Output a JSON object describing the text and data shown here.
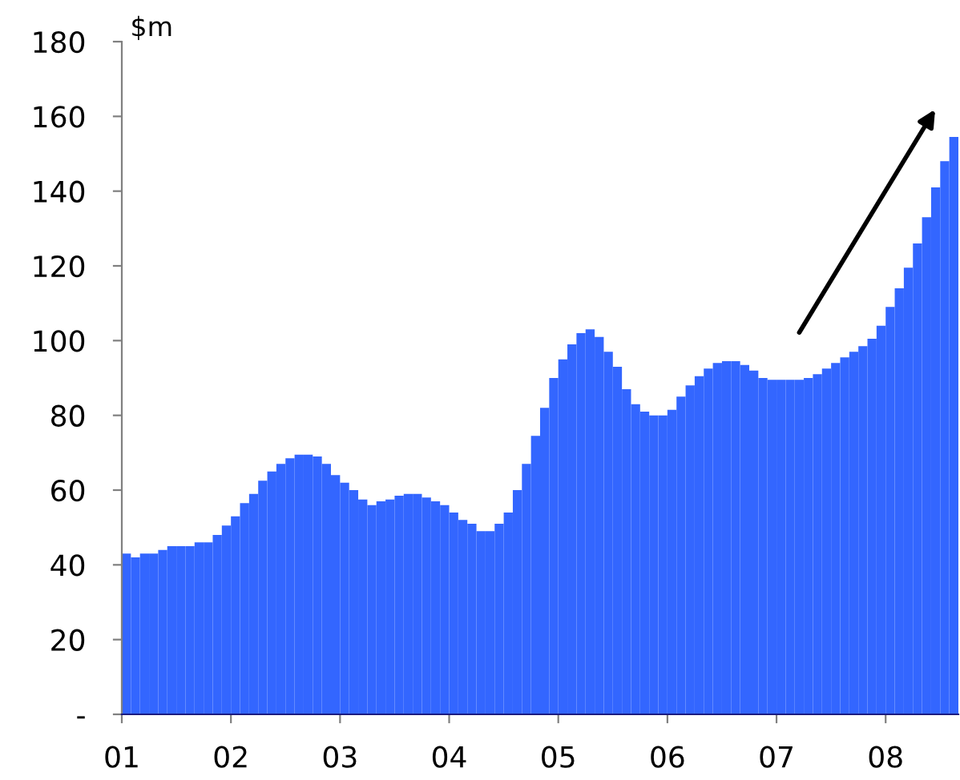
{
  "chart_data": {
    "type": "bar",
    "ylabel": "$m",
    "categories": [
      "01",
      null,
      null,
      null,
      null,
      null,
      null,
      null,
      null,
      null,
      null,
      null,
      "02",
      null,
      null,
      null,
      null,
      null,
      null,
      null,
      null,
      null,
      null,
      null,
      "03",
      null,
      null,
      null,
      null,
      null,
      null,
      null,
      null,
      null,
      null,
      null,
      "04",
      null,
      null,
      null,
      null,
      null,
      null,
      null,
      null,
      null,
      null,
      null,
      "05",
      null,
      null,
      null,
      null,
      null,
      null,
      null,
      null,
      null,
      null,
      null,
      "06",
      null,
      null,
      null,
      null,
      null,
      null,
      null,
      null,
      null,
      null,
      null,
      "07",
      null,
      null,
      null,
      null,
      null,
      null,
      null,
      null,
      null,
      null,
      null,
      "08",
      null,
      null,
      null,
      null,
      null,
      null,
      null
    ],
    "values": [
      43,
      42,
      43,
      43,
      44,
      45,
      45,
      45,
      46,
      46,
      48,
      50.5,
      53,
      56.5,
      59,
      62.5,
      65,
      67,
      68.5,
      69.5,
      69.5,
      69,
      67,
      64,
      62,
      60,
      57.5,
      56,
      57,
      57.5,
      58.5,
      59,
      59,
      58,
      57,
      56,
      54,
      52,
      51,
      49,
      49,
      51,
      54,
      60,
      67,
      74.5,
      82,
      90,
      95,
      99,
      102,
      103,
      101,
      97,
      93,
      87,
      83,
      81,
      80,
      80,
      81.5,
      85,
      88,
      90.5,
      92.5,
      94,
      94.5,
      94.5,
      93.5,
      92,
      90,
      89.5,
      89.5,
      89.5,
      89.5,
      90,
      91,
      92.5,
      94,
      95.5,
      97,
      98.5,
      100.5,
      104,
      109,
      114,
      119.5,
      126,
      133,
      141,
      148,
      154.5
    ],
    "color": "#3366ff",
    "ylim": [
      0,
      180
    ],
    "yticks": [
      {
        "value": 0,
        "label": "-"
      },
      20,
      40,
      60,
      80,
      100,
      120,
      140,
      160,
      180
    ],
    "grid": false
  }
}
